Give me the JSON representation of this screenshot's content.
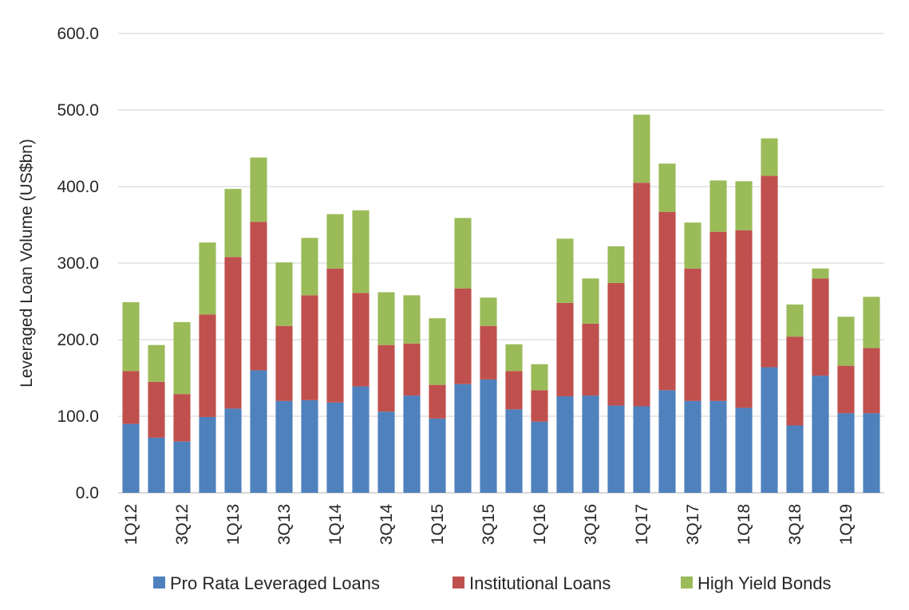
{
  "chart_data": {
    "type": "bar",
    "stacked": true,
    "ylabel": "Leveraged Loan Volume (US$bn)",
    "xlabel": "",
    "ylim": [
      0,
      600
    ],
    "yticks": [
      "0.0",
      "100.0",
      "200.0",
      "300.0",
      "400.0",
      "500.0",
      "600.0"
    ],
    "grid": true,
    "legend_position": "bottom",
    "categories": [
      "1Q12",
      "2Q12",
      "3Q12",
      "4Q12",
      "1Q13",
      "2Q13",
      "3Q13",
      "4Q13",
      "1Q14",
      "2Q14",
      "3Q14",
      "4Q14",
      "1Q15",
      "2Q15",
      "3Q15",
      "4Q15",
      "1Q16",
      "2Q16",
      "3Q16",
      "4Q16",
      "1Q17",
      "2Q17",
      "3Q17",
      "4Q17",
      "1Q18",
      "2Q18",
      "3Q18",
      "4Q18",
      "1Q19",
      "2Q19"
    ],
    "xtick_labels": [
      "1Q12",
      "",
      "3Q12",
      "",
      "1Q13",
      "",
      "3Q13",
      "",
      "1Q14",
      "",
      "3Q14",
      "",
      "1Q15",
      "",
      "3Q15",
      "",
      "1Q16",
      "",
      "3Q16",
      "",
      "1Q17",
      "",
      "3Q17",
      "",
      "1Q18",
      "",
      "3Q18",
      "",
      "1Q19",
      ""
    ],
    "series": [
      {
        "name": "Pro Rata Leveraged Loans",
        "color": "#4f81bd",
        "values": [
          90,
          72,
          67,
          99,
          110,
          160,
          120,
          121,
          118,
          139,
          106,
          127,
          97,
          142,
          148,
          109,
          93,
          126,
          127,
          114,
          113,
          134,
          120,
          120,
          111,
          164,
          88,
          153,
          104,
          104
        ]
      },
      {
        "name": "Institutional Loans",
        "color": "#c0504d",
        "values": [
          69,
          73,
          62,
          134,
          198,
          194,
          98,
          137,
          175,
          122,
          87,
          68,
          44,
          125,
          70,
          50,
          41,
          122,
          94,
          160,
          292,
          233,
          173,
          221,
          232,
          250,
          116,
          127,
          62,
          85
        ]
      },
      {
        "name": "High Yield Bonds",
        "color": "#9bbb59",
        "values": [
          90,
          48,
          94,
          94,
          89,
          84,
          83,
          75,
          71,
          108,
          69,
          63,
          87,
          92,
          37,
          35,
          34,
          84,
          59,
          48,
          89,
          63,
          60,
          67,
          64,
          49,
          42,
          13,
          64,
          67
        ]
      }
    ]
  }
}
